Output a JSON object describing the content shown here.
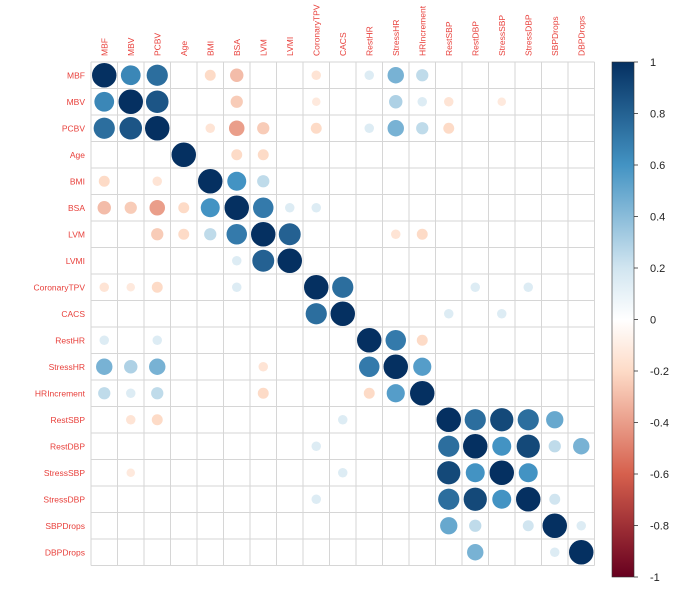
{
  "chart_data": {
    "type": "heatmap",
    "subtype": "correlation-circles",
    "variables": [
      "MBF",
      "MBV",
      "PCBV",
      "Age",
      "BMI",
      "BSA",
      "LVM",
      "LVMI",
      "CoronaryTPV",
      "CACS",
      "RestHR",
      "StressHR",
      "HRIncrement",
      "RestSBP",
      "RestDBP",
      "StressSBP",
      "StressDBP",
      "SBPDrops",
      "DBPDrops"
    ],
    "matrix": [
      [
        1,
        0.65,
        0.75,
        0,
        -0.2,
        -0.3,
        0,
        0,
        -0.15,
        0,
        0.15,
        0.45,
        0.25,
        0,
        0,
        0,
        0,
        0,
        0
      ],
      [
        0.65,
        1,
        0.85,
        0,
        0,
        -0.25,
        0,
        0,
        -0.12,
        0,
        0,
        0.3,
        0.15,
        -0.15,
        0,
        -0.12,
        0,
        0,
        0
      ],
      [
        0.75,
        0.85,
        1,
        0,
        -0.15,
        -0.4,
        -0.25,
        0,
        -0.2,
        0,
        0.15,
        0.45,
        0.25,
        -0.2,
        0,
        0,
        0,
        0,
        0
      ],
      [
        0,
        0,
        0,
        1,
        0,
        -0.2,
        -0.2,
        0,
        0,
        0,
        0,
        0,
        0,
        0,
        0,
        0,
        0,
        0,
        0
      ],
      [
        -0.2,
        0,
        -0.15,
        0,
        1,
        0.6,
        0.25,
        0,
        0,
        0,
        0,
        0,
        0,
        0,
        0,
        0,
        0,
        0,
        0
      ],
      [
        -0.3,
        -0.25,
        -0.4,
        -0.2,
        0.6,
        1,
        0.7,
        0.15,
        0.15,
        0,
        0,
        0,
        0,
        0,
        0,
        0,
        0,
        0,
        0
      ],
      [
        0,
        0,
        -0.25,
        -0.2,
        0.25,
        0.7,
        1,
        0.8,
        0,
        0,
        0,
        -0.15,
        -0.2,
        0,
        0,
        0,
        0,
        0,
        0
      ],
      [
        0,
        0,
        0,
        0,
        0,
        0.15,
        0.8,
        1,
        0,
        0,
        0,
        0,
        0,
        0,
        0,
        0,
        0,
        0,
        0
      ],
      [
        -0.15,
        -0.12,
        -0.2,
        0,
        0,
        0.15,
        0,
        0,
        1,
        0.75,
        0,
        0,
        0,
        0,
        0.15,
        0,
        0.15,
        0,
        0
      ],
      [
        0,
        0,
        0,
        0,
        0,
        0,
        0,
        0,
        0.75,
        1,
        0,
        0,
        0,
        0.15,
        0,
        0.15,
        0,
        0,
        0
      ],
      [
        0.15,
        0,
        0.15,
        0,
        0,
        0,
        0,
        0,
        0,
        0,
        1,
        0.7,
        -0.2,
        0,
        0,
        0,
        0,
        0,
        0
      ],
      [
        0.45,
        0.3,
        0.45,
        0,
        0,
        0,
        -0.15,
        0,
        0,
        0,
        0.7,
        1,
        0.55,
        0,
        0,
        0,
        0,
        0,
        0
      ],
      [
        0.25,
        0.15,
        0.25,
        0,
        0,
        0,
        -0.2,
        0,
        0,
        0,
        -0.2,
        0.55,
        1,
        0,
        0,
        0,
        0,
        0,
        0
      ],
      [
        0,
        -0.15,
        -0.2,
        0,
        0,
        0,
        0,
        0,
        0,
        0.15,
        0,
        0,
        0,
        1,
        0.75,
        0.9,
        0.75,
        0.5,
        0
      ],
      [
        0,
        0,
        0,
        0,
        0,
        0,
        0,
        0,
        0.15,
        0,
        0,
        0,
        0,
        0.75,
        1,
        0.6,
        0.9,
        0.25,
        0.45
      ],
      [
        0,
        -0.12,
        0,
        0,
        0,
        0,
        0,
        0,
        0,
        0.15,
        0,
        0,
        0,
        0.9,
        0.6,
        1,
        0.6,
        0,
        0
      ],
      [
        0,
        0,
        0,
        0,
        0,
        0,
        0,
        0,
        0.15,
        0,
        0,
        0,
        0,
        0.75,
        0.9,
        0.6,
        1,
        0.2,
        0
      ],
      [
        0,
        0,
        0,
        0,
        0,
        0,
        0,
        0,
        0,
        0,
        0,
        0,
        0,
        0.5,
        0.25,
        0,
        0.2,
        1,
        0.15
      ],
      [
        0,
        0,
        0,
        0,
        0,
        0,
        0,
        0,
        0,
        0,
        0,
        0,
        0,
        0,
        0.45,
        0,
        0,
        0.15,
        1
      ]
    ],
    "colorbar": {
      "ticks": [
        1,
        0.8,
        0.6,
        0.4,
        0.2,
        0,
        -0.2,
        -0.4,
        -0.6,
        -0.8,
        -1
      ],
      "tick_labels": [
        "1",
        "0.8",
        "0.6",
        "0.4",
        "0.2",
        "0",
        "-0.2",
        "-0.4",
        "-0.6",
        "-0.8",
        "-1"
      ],
      "range": [
        -1,
        1
      ],
      "colors": {
        "neg_strong": "#67001f",
        "neg_mid": "#d6604d",
        "neg_light": "#fddbc7",
        "zero": "#ffffff",
        "pos_light": "#d1e5f0",
        "pos_mid": "#4393c3",
        "pos_strong": "#053061"
      }
    },
    "label_color": "#e8413c",
    "grid_color": "#d6d6d6",
    "grid": true,
    "legend_placement": "right"
  }
}
